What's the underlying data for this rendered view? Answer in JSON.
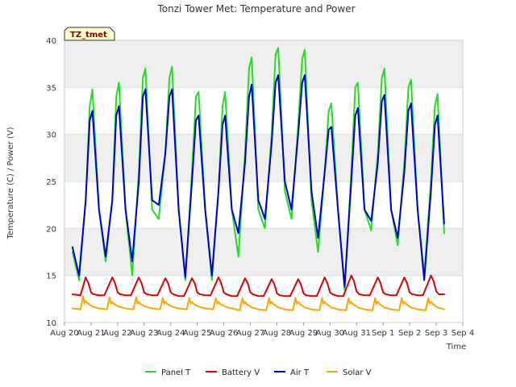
{
  "chart_data": {
    "type": "line",
    "title": "Tonzi Tower Met: Temperature and Power",
    "xlabel": "Time",
    "ylabel": "Temperature (C) / Power (V)",
    "station_label": "TZ_tmet",
    "ylim": [
      10,
      40
    ],
    "xlim": [
      0,
      15
    ],
    "yticks": [
      10,
      15,
      20,
      25,
      30,
      35,
      40
    ],
    "xticks": [
      {
        "pos": 0,
        "label": "Aug 20"
      },
      {
        "pos": 1,
        "label": "Aug 21"
      },
      {
        "pos": 2,
        "label": "Aug 22"
      },
      {
        "pos": 3,
        "label": "Aug 23"
      },
      {
        "pos": 4,
        "label": "Aug 24"
      },
      {
        "pos": 5,
        "label": "Aug 25"
      },
      {
        "pos": 6,
        "label": "Aug 26"
      },
      {
        "pos": 7,
        "label": "Aug 27"
      },
      {
        "pos": 8,
        "label": "Aug 28"
      },
      {
        "pos": 9,
        "label": "Aug 29"
      },
      {
        "pos": 10,
        "label": "Aug 30"
      },
      {
        "pos": 11,
        "label": "Aug 31"
      },
      {
        "pos": 12,
        "label": "Sep 1"
      },
      {
        "pos": 13,
        "label": "Sep 2"
      },
      {
        "pos": 14,
        "label": "Sep 3"
      },
      {
        "pos": 15,
        "label": "Sep 4"
      }
    ],
    "series": [
      {
        "name": "Panel T",
        "color": "#22dd22",
        "x": [
          0.3,
          0.55,
          0.8,
          0.95,
          1.05,
          1.3,
          1.55,
          1.8,
          1.95,
          2.05,
          2.3,
          2.55,
          2.8,
          2.95,
          3.05,
          3.3,
          3.55,
          3.8,
          3.95,
          4.05,
          4.3,
          4.55,
          4.8,
          4.95,
          5.05,
          5.3,
          5.55,
          5.8,
          5.95,
          6.05,
          6.3,
          6.55,
          6.8,
          6.95,
          7.05,
          7.3,
          7.55,
          7.8,
          7.95,
          8.05,
          8.3,
          8.55,
          8.8,
          8.95,
          9.05,
          9.3,
          9.55,
          9.8,
          9.95,
          10.05,
          10.3,
          10.55,
          10.8,
          10.95,
          11.05,
          11.3,
          11.55,
          11.8,
          11.95,
          12.05,
          12.3,
          12.55,
          12.8,
          12.95,
          13.05,
          13.3,
          13.55,
          13.8,
          13.95,
          14.05,
          14.3
        ],
        "y": [
          17.5,
          14.5,
          23,
          33,
          34.8,
          22,
          16.5,
          23,
          34,
          35.5,
          22,
          15,
          26,
          36,
          37,
          22,
          21,
          28,
          36,
          37.2,
          22,
          14.5,
          26,
          34,
          34.5,
          22,
          14.5,
          24,
          33,
          34.5,
          22,
          17,
          28,
          37,
          38.2,
          22,
          20,
          30,
          38.5,
          39.2,
          24,
          21,
          31,
          38,
          39,
          23,
          17.5,
          26,
          32.5,
          33.3,
          22,
          13.5,
          26,
          35,
          35.5,
          22,
          19.8,
          28,
          36,
          37,
          22,
          18.2,
          27,
          35,
          35.8,
          22,
          15,
          25,
          33,
          34.3,
          19.5
        ]
      },
      {
        "name": "Battery V",
        "color": "#dd0000",
        "x": [
          0.3,
          0.6,
          0.8,
          0.9,
          1.0,
          1.1,
          1.3,
          1.5,
          1.8,
          1.9,
          2.0,
          2.1,
          2.3,
          2.5,
          2.8,
          2.9,
          3.0,
          3.1,
          3.3,
          3.5,
          3.8,
          3.9,
          4.0,
          4.1,
          4.3,
          4.5,
          4.8,
          4.9,
          5.0,
          5.1,
          5.3,
          5.5,
          5.8,
          5.9,
          6.0,
          6.1,
          6.3,
          6.5,
          6.8,
          6.9,
          7.0,
          7.1,
          7.3,
          7.5,
          7.8,
          7.9,
          8.0,
          8.1,
          8.3,
          8.5,
          8.8,
          8.9,
          9.0,
          9.1,
          9.3,
          9.5,
          9.8,
          9.9,
          10.0,
          10.1,
          10.3,
          10.5,
          10.8,
          10.9,
          11.0,
          11.1,
          11.3,
          11.5,
          11.8,
          11.9,
          12.0,
          12.1,
          12.3,
          12.5,
          12.8,
          12.9,
          13.0,
          13.1,
          13.3,
          13.5,
          13.8,
          13.9,
          14.0,
          14.1,
          14.3
        ],
        "y": [
          13,
          12.9,
          14.8,
          14.2,
          13.2,
          13.0,
          12.9,
          12.9,
          14.8,
          14.2,
          13.2,
          13.0,
          12.9,
          12.9,
          14.8,
          14.2,
          13.2,
          13.0,
          12.9,
          12.9,
          14.7,
          14.2,
          13.2,
          13.0,
          12.8,
          12.8,
          14.7,
          14.2,
          13.2,
          13.0,
          12.9,
          12.9,
          14.8,
          14.2,
          13.2,
          13.0,
          12.8,
          12.8,
          14.7,
          14.2,
          13.2,
          13.0,
          12.8,
          12.8,
          14.6,
          14.1,
          13.1,
          12.9,
          12.8,
          12.8,
          14.6,
          14.1,
          13.1,
          12.9,
          12.8,
          12.8,
          14.8,
          14.2,
          13.2,
          13.0,
          12.8,
          12.8,
          15.0,
          14.4,
          13.3,
          13.0,
          12.9,
          12.9,
          14.8,
          14.2,
          13.2,
          13.0,
          12.9,
          12.9,
          14.8,
          14.2,
          13.2,
          13.0,
          12.9,
          12.9,
          15.0,
          14.4,
          13.3,
          13.0,
          13.0
        ]
      },
      {
        "name": "Air T",
        "color": "#0000cc",
        "x": [
          0.3,
          0.55,
          0.8,
          0.95,
          1.05,
          1.3,
          1.55,
          1.8,
          1.95,
          2.05,
          2.3,
          2.55,
          2.8,
          2.95,
          3.05,
          3.3,
          3.55,
          3.8,
          3.95,
          4.05,
          4.3,
          4.55,
          4.8,
          4.95,
          5.05,
          5.3,
          5.55,
          5.8,
          5.95,
          6.05,
          6.3,
          6.55,
          6.8,
          6.95,
          7.05,
          7.3,
          7.55,
          7.8,
          7.95,
          8.05,
          8.3,
          8.55,
          8.8,
          8.95,
          9.05,
          9.3,
          9.55,
          9.8,
          9.95,
          10.05,
          10.3,
          10.55,
          10.8,
          10.95,
          11.05,
          11.3,
          11.55,
          11.8,
          11.95,
          12.05,
          12.3,
          12.55,
          12.8,
          12.95,
          13.05,
          13.3,
          13.55,
          13.8,
          13.95,
          14.05,
          14.3
        ],
        "y": [
          18,
          15,
          23,
          31.5,
          32.5,
          22,
          17,
          23,
          32,
          33,
          22,
          16.5,
          25,
          34,
          34.8,
          23,
          22.5,
          28,
          34,
          34.8,
          22,
          14.8,
          25,
          31.5,
          32,
          22,
          15,
          24,
          31,
          32,
          22,
          19.5,
          27,
          34,
          35.3,
          23,
          21,
          29,
          35.5,
          36.3,
          25,
          22,
          30,
          35.5,
          36.3,
          24,
          19,
          26,
          30.5,
          30.8,
          22,
          13.8,
          25,
          32,
          32.8,
          22,
          20.8,
          27,
          33.5,
          34.2,
          22,
          19,
          26,
          32.5,
          33.3,
          22,
          14.5,
          24,
          31,
          32,
          20.5
        ]
      },
      {
        "name": "Solar V",
        "color": "#ffa500",
        "x": [
          0.3,
          0.6,
          0.7,
          0.75,
          0.8,
          0.85,
          1.05,
          1.3,
          1.6,
          1.7,
          1.75,
          1.8,
          1.85,
          2.05,
          2.3,
          2.6,
          2.7,
          2.75,
          2.8,
          2.85,
          3.05,
          3.3,
          3.6,
          3.7,
          3.75,
          3.8,
          3.85,
          4.05,
          4.3,
          4.6,
          4.7,
          4.75,
          4.8,
          4.85,
          5.05,
          5.3,
          5.6,
          5.7,
          5.75,
          5.8,
          5.85,
          6.05,
          6.3,
          6.6,
          6.7,
          6.75,
          6.8,
          6.85,
          7.05,
          7.3,
          7.6,
          7.7,
          7.75,
          7.8,
          7.85,
          8.05,
          8.3,
          8.6,
          8.7,
          8.75,
          8.8,
          8.85,
          9.05,
          9.3,
          9.6,
          9.7,
          9.75,
          9.8,
          9.85,
          10.05,
          10.3,
          10.6,
          10.7,
          10.75,
          10.8,
          10.85,
          11.05,
          11.3,
          11.6,
          11.7,
          11.75,
          11.8,
          11.85,
          12.05,
          12.3,
          12.6,
          12.7,
          12.75,
          12.8,
          12.85,
          13.05,
          13.3,
          13.6,
          13.7,
          13.75,
          13.8,
          13.85,
          14.05,
          14.3
        ],
        "y": [
          11.5,
          11.4,
          12.8,
          12.0,
          12.3,
          12.1,
          11.7,
          11.5,
          11.4,
          12.7,
          12.0,
          12.2,
          12.0,
          11.7,
          11.5,
          11.4,
          12.7,
          12.0,
          12.2,
          12.0,
          11.7,
          11.5,
          11.4,
          12.6,
          12.0,
          12.2,
          12.0,
          11.7,
          11.5,
          11.4,
          12.6,
          12.0,
          12.2,
          12.0,
          11.7,
          11.5,
          11.4,
          12.6,
          12.0,
          12.2,
          12.0,
          11.7,
          11.5,
          11.3,
          12.6,
          12.0,
          12.2,
          12.0,
          11.6,
          11.4,
          11.3,
          12.6,
          12.0,
          12.2,
          12.0,
          11.6,
          11.4,
          11.3,
          12.6,
          12.0,
          12.2,
          12.0,
          11.6,
          11.4,
          11.3,
          12.6,
          12.0,
          12.2,
          12.0,
          11.6,
          11.4,
          11.3,
          12.6,
          12.0,
          12.2,
          12.0,
          11.6,
          11.4,
          11.3,
          12.6,
          12.0,
          12.2,
          12.0,
          11.6,
          11.4,
          11.3,
          12.6,
          12.0,
          12.2,
          12.0,
          11.6,
          11.4,
          11.3,
          12.6,
          12.0,
          12.2,
          12.0,
          11.6,
          11.4
        ]
      }
    ]
  }
}
